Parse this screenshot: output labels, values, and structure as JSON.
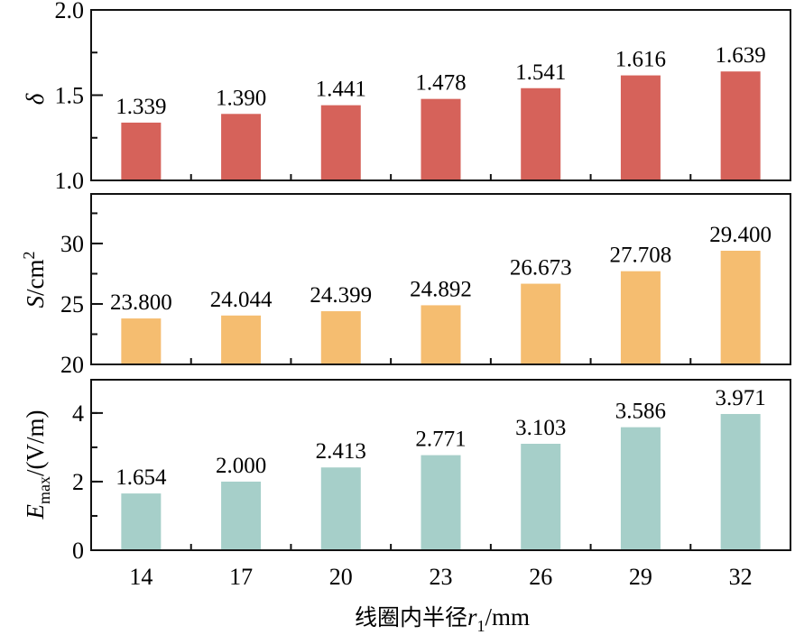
{
  "chart_data": [
    {
      "type": "bar",
      "panel": "top",
      "ylabel": "δ",
      "ylim": [
        1.0,
        2.0
      ],
      "yticks": [
        "1.0",
        "1.5",
        "2.0"
      ],
      "minor_step": 0.25,
      "color": "#d6625a",
      "categories": [
        "14",
        "17",
        "20",
        "23",
        "26",
        "29",
        "32"
      ],
      "values": [
        1.339,
        1.39,
        1.441,
        1.478,
        1.541,
        1.616,
        1.639
      ],
      "labels": [
        "1.339",
        "1.390",
        "1.441",
        "1.478",
        "1.541",
        "1.616",
        "1.639"
      ]
    },
    {
      "type": "bar",
      "panel": "middle",
      "ylabel": "S/cm²",
      "ylim": [
        20,
        34.1
      ],
      "yticks": [
        "20",
        "25",
        "30"
      ],
      "minor_step": 2.5,
      "color": "#f5bd70",
      "categories": [
        "14",
        "17",
        "20",
        "23",
        "26",
        "29",
        "32"
      ],
      "values": [
        23.8,
        24.044,
        24.399,
        24.892,
        26.673,
        27.708,
        29.4
      ],
      "labels": [
        "23.800",
        "24.044",
        "24.399",
        "24.892",
        "26.673",
        "27.708",
        "29.400"
      ]
    },
    {
      "type": "bar",
      "panel": "bottom",
      "ylabel": "Emax/(V/m)",
      "ylim": [
        0,
        4.97
      ],
      "yticks": [
        "0",
        "2",
        "4"
      ],
      "minor_step": 1,
      "color": "#a6cfc9",
      "categories": [
        "14",
        "17",
        "20",
        "23",
        "26",
        "29",
        "32"
      ],
      "values": [
        1.654,
        2.0,
        2.413,
        2.771,
        3.103,
        3.586,
        3.971
      ],
      "labels": [
        "1.654",
        "2.000",
        "2.413",
        "2.771",
        "3.103",
        "3.586",
        "3.971"
      ]
    }
  ],
  "xaxis": {
    "title_cn": "线圈内半径",
    "title_var": "r",
    "title_sub": "1",
    "title_unit": "/mm",
    "ticks": [
      "14",
      "17",
      "20",
      "23",
      "26",
      "29",
      "32"
    ]
  },
  "ylabels": {
    "top": "δ",
    "middle_main": "S/cm",
    "middle_sup": "2",
    "bottom_var": "E",
    "bottom_sub": "max",
    "bottom_unit": "/(V/m)"
  }
}
